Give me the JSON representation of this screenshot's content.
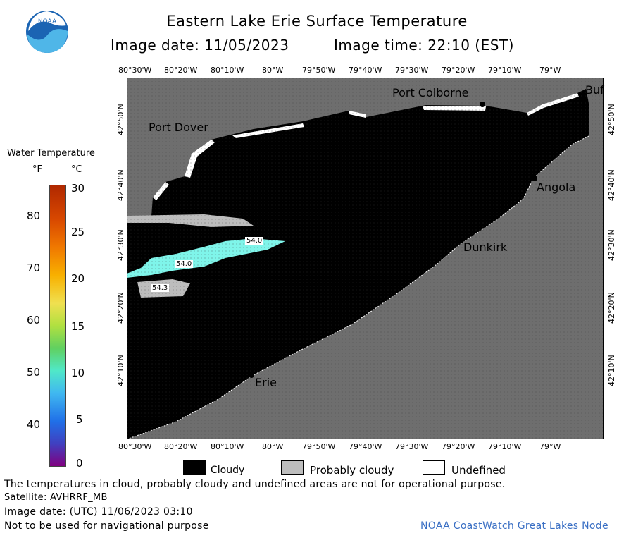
{
  "title": "Eastern Lake Erie Surface Temperature",
  "image_date_label": "Image date: 11/05/2023",
  "image_time_label": "Image time: 22:10 (EST)",
  "logo_text": "NOAA",
  "colorbar": {
    "title": "Water Temperature",
    "unit_f": "°F",
    "unit_c": "°C",
    "f_ticks": [
      "80",
      "70",
      "60",
      "50",
      "40"
    ],
    "c_ticks": [
      "30",
      "25",
      "20",
      "15",
      "10",
      "5",
      "0"
    ]
  },
  "axes": {
    "lon_ticks": [
      "80°30'W",
      "80°20'W",
      "80°10'W",
      "80°W",
      "79°50'W",
      "79°40'W",
      "79°30'W",
      "79°20'W",
      "79°10'W",
      "79°W"
    ],
    "lat_ticks": [
      "42°50'N",
      "42°40'N",
      "42°30'N",
      "42°20'N",
      "42°10'N"
    ]
  },
  "places": {
    "port_colborne": "Port Colborne",
    "buffalo": "Buf",
    "port_dover": "Port Dover",
    "angola": "Angola",
    "dunkirk": "Dunkirk",
    "erie": "Erie"
  },
  "temp_labels": {
    "t1": "54.0",
    "t2": "54.0",
    "t3": "54.3"
  },
  "legend": {
    "cloudy": "Cloudy",
    "probably_cloudy": "Probably cloudy",
    "undefined": "Undefined"
  },
  "footer": {
    "disclaimer": "The temperatures in cloud, probably cloudy and undefined areas are not for operational purpose.",
    "satellite": "Satellite: AVHRRF_MB",
    "utc_date": "Image date: (UTC) 11/06/2023  03:10",
    "nav_note": "Not to be used for navigational purpose",
    "credit": "NOAA CoastWatch Great Lakes Node"
  },
  "colors": {
    "land": "#6e6e6e",
    "cloud": "#000000",
    "probably_cloudy": "#bdbdbd",
    "water_temp": "#7ff5ea"
  }
}
